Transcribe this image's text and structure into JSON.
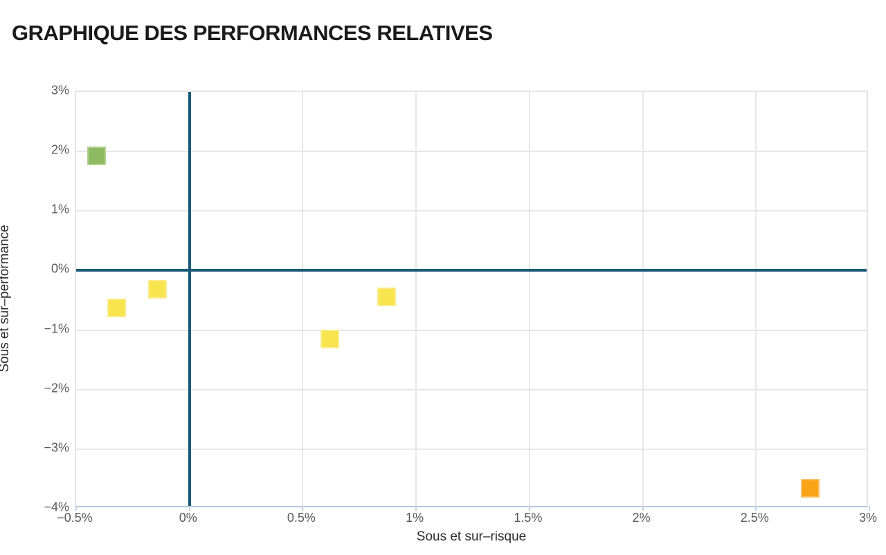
{
  "page_title": "GRAPHIQUE DES PERFORMANCES RELATIVES",
  "chart_data": {
    "type": "scatter",
    "title": "GRAPHIQUE DES PERFORMANCES RELATIVES",
    "xlabel": "Sous et sur–risque",
    "ylabel": "Sous et sur–performance",
    "xlim": [
      -0.5,
      3
    ],
    "ylim": [
      -4,
      3
    ],
    "xtick_step": 0.5,
    "ytick_step": 1,
    "x_tick_labels": [
      "−0.5%",
      "0%",
      "0.5%",
      "1%",
      "1.5%",
      "2%",
      "2.5%",
      "3%"
    ],
    "y_tick_labels": [
      "3%",
      "2%",
      "1%",
      "0%",
      "−1%",
      "−2%",
      "−3%",
      "−4%"
    ],
    "grid": true,
    "zero_lines": true,
    "legend": "none",
    "points": [
      {
        "x": -0.41,
        "y": 1.93,
        "category": "green",
        "fill": "#8eba62",
        "stroke": "#b5d293"
      },
      {
        "x": -0.32,
        "y": -0.63,
        "category": "yellow",
        "fill": "#f8e44f",
        "stroke": "#faec8b"
      },
      {
        "x": -0.14,
        "y": -0.31,
        "category": "yellow",
        "fill": "#f8e44f",
        "stroke": "#faec8b"
      },
      {
        "x": 0.62,
        "y": -1.15,
        "category": "yellow",
        "fill": "#f8e44f",
        "stroke": "#faec8b"
      },
      {
        "x": 0.87,
        "y": -0.44,
        "category": "yellow",
        "fill": "#f8e44f",
        "stroke": "#faec8b"
      },
      {
        "x": 2.74,
        "y": -3.66,
        "category": "orange",
        "fill": "#f9a417",
        "stroke": "#fac169"
      }
    ],
    "colors": {
      "zero_line": "#185a78",
      "gridline": "#e7e7e7",
      "plot_border": "#e4e4e4",
      "bottom_axis_line": "#b0c9e0",
      "tick_mark": "#c2d2e0",
      "tick_label": "#595959",
      "axis_title": "#2b2b2b",
      "chart_title": "#1a1a1a"
    }
  }
}
